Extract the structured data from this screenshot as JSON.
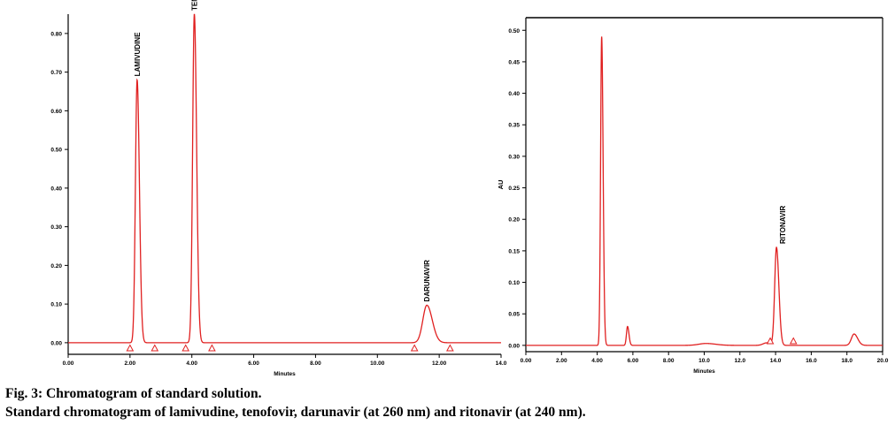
{
  "figure": {
    "caption_title": "Fig. 3: Chromatogram of standard solution.",
    "caption_text": "Standard chromatogram of lamivudine, tenofovir, darunavir (at 260 nm) and ritonavir (at 240 nm)."
  },
  "chart_data": [
    {
      "type": "line",
      "title": "",
      "xlabel": "Minutes",
      "ylabel": "",
      "xlim": [
        0,
        14
      ],
      "ylim": [
        -0.03,
        0.85
      ],
      "x_ticks": [
        "0.00",
        "2.00",
        "4.00",
        "6.00",
        "8.00",
        "10.00",
        "12.00",
        "14.0"
      ],
      "y_ticks": [
        "0.00",
        "0.10",
        "0.20",
        "0.30",
        "0.40",
        "0.50",
        "0.60",
        "0.70",
        "0.80"
      ],
      "grid": false,
      "line_color": "#e02020",
      "baseline": 0.0,
      "peaks": [
        {
          "label": "LAMIVUDINE",
          "rt": 2.23,
          "height": 0.68,
          "width": 0.055
        },
        {
          "label": "TENOFOVIR DF",
          "rt": 4.08,
          "height": 0.85,
          "width": 0.055
        },
        {
          "label": "DARUNAVIR",
          "rt": 11.6,
          "height": 0.097,
          "width": 0.13
        }
      ],
      "integration_markers_x": [
        2.0,
        2.8,
        3.8,
        4.65,
        11.2,
        12.35
      ]
    },
    {
      "type": "line",
      "title": "",
      "xlabel": "Minutes",
      "ylabel": "AU",
      "xlim": [
        0,
        20
      ],
      "ylim": [
        -0.01,
        0.52
      ],
      "x_ticks": [
        "0.00",
        "2.00",
        "4.00",
        "6.00",
        "8.00",
        "10.0",
        "12.0",
        "14.0",
        "16.0",
        "18.0",
        "20.0"
      ],
      "y_ticks": [
        "0.00",
        "0.05",
        "0.10",
        "0.15",
        "0.20",
        "0.25",
        "0.30",
        "0.35",
        "0.40",
        "0.45",
        "0.50"
      ],
      "grid": false,
      "line_color": "#e02020",
      "baseline": 0.0,
      "peaks": [
        {
          "label": "",
          "rt": 4.25,
          "height": 0.49,
          "width": 0.06
        },
        {
          "label": "",
          "rt": 5.7,
          "height": 0.03,
          "width": 0.06
        },
        {
          "label": "",
          "rt": 10.1,
          "height": 0.003,
          "width": 0.4
        },
        {
          "label": "",
          "rt": 13.5,
          "height": 0.004,
          "width": 0.2
        },
        {
          "label": "RITONAVIR",
          "rt": 14.05,
          "height": 0.155,
          "width": 0.1
        },
        {
          "label": "",
          "rt": 18.4,
          "height": 0.018,
          "width": 0.15
        }
      ],
      "integration_markers_x": [
        13.7,
        15.0
      ]
    }
  ]
}
